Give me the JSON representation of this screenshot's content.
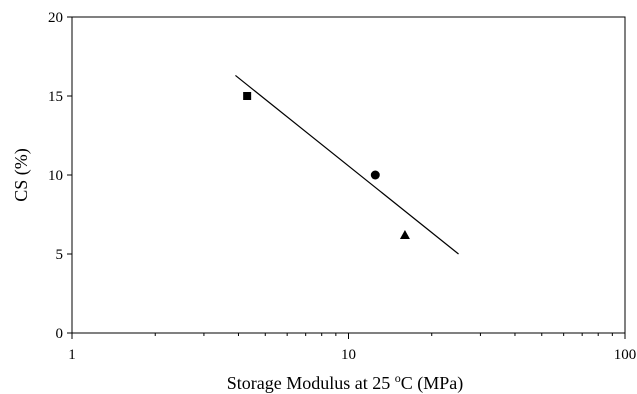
{
  "chart_data": {
    "type": "scatter",
    "title": "",
    "xlabel": "Storage Modulus at 25 °C  (MPa)",
    "xlabel_parts": {
      "before": "Storage Modulus at 25 ",
      "superscript": "o",
      "after": "C  (MPa)"
    },
    "ylabel": "CS (%)",
    "x_scale": "log",
    "xlim": [
      1,
      100
    ],
    "ylim": [
      0,
      20
    ],
    "x_ticks": [
      1,
      10,
      100
    ],
    "y_ticks": [
      0,
      5,
      10,
      15,
      20
    ],
    "x_tick_labels": [
      "1",
      "10",
      "100"
    ],
    "y_tick_labels": [
      "0",
      "5",
      "10",
      "15",
      "20"
    ],
    "grid": false,
    "series": [
      {
        "marker": "square",
        "x": [
          4.3
        ],
        "y": [
          15.0
        ]
      },
      {
        "marker": "circle",
        "x": [
          12.5
        ],
        "y": [
          10.0
        ]
      },
      {
        "marker": "triangle",
        "x": [
          16.0
        ],
        "y": [
          6.2
        ]
      }
    ],
    "trendline": {
      "x": [
        3.9,
        25.0
      ],
      "y": [
        16.3,
        5.0
      ]
    },
    "colors": {
      "marker": "#000000",
      "line": "#000000",
      "axis": "#000000"
    }
  }
}
